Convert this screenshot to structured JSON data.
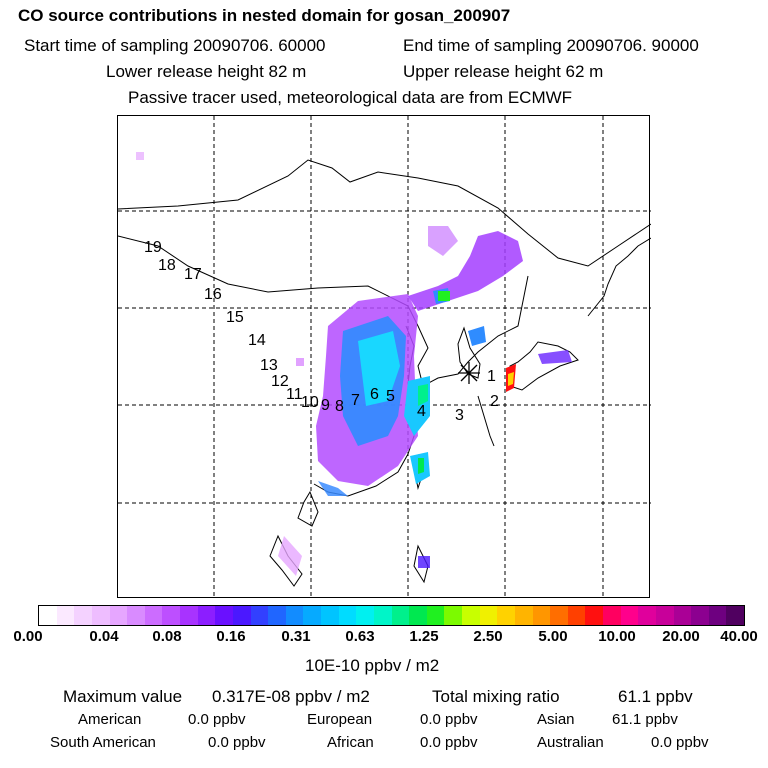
{
  "header": {
    "title": "CO  source contributions in nested domain for gosan_200907",
    "start_label": "Start time of sampling 20090706. 60000",
    "end_label": "End time of sampling 20090706. 90000",
    "lower_label": "Lower release height   82 m",
    "upper_label": "Upper release height   62 m",
    "note": "Passive tracer used, meteorological data are from ECMWF"
  },
  "map": {
    "receptor_marker": "asterisk-icon",
    "trajectory_labels": [
      "1",
      "2",
      "3",
      "4",
      "5",
      "6",
      "7",
      "8",
      "9",
      "10",
      "11",
      "12",
      "13",
      "14",
      "15",
      "16",
      "17",
      "18",
      "19"
    ],
    "colors": {
      "coast": "#000000",
      "grid": "#000000",
      "plume_low": "#e9b6ff",
      "plume_mid": "#a12bff",
      "plume_high": "#19c8ff",
      "plume_peak": "#00ff64"
    }
  },
  "colorbar": {
    "tick_labels": [
      "0.00",
      "0.04",
      "0.08",
      "0.16",
      "0.31",
      "0.63",
      "1.25",
      "2.50",
      "5.00",
      "10.00",
      "20.00",
      "40.00"
    ],
    "unit": "10E-10 ppbv / m2",
    "colors": [
      "#ffffff",
      "#fbe9ff",
      "#f4d2ff",
      "#eebdff",
      "#e6a6ff",
      "#d98bff",
      "#cc6cff",
      "#bd4fff",
      "#a833ff",
      "#8c1eff",
      "#6a10ff",
      "#4b18ff",
      "#3240ff",
      "#2066ff",
      "#128cff",
      "#06aaff",
      "#00c4ff",
      "#00dcff",
      "#00f0f0",
      "#00f5c8",
      "#00f08c",
      "#00e850",
      "#20f020",
      "#7cfa00",
      "#c8ff00",
      "#f0f000",
      "#ffd200",
      "#ffb400",
      "#ff9600",
      "#ff6e00",
      "#ff4000",
      "#ff1010",
      "#ff0060",
      "#ff008c",
      "#e0009c",
      "#c8009a",
      "#aa0096",
      "#8c0090",
      "#6e0080",
      "#500060"
    ]
  },
  "summary": {
    "max_label": "Maximum value",
    "max_value": "0.317E-08 ppbv / m2",
    "total_label": "Total mixing ratio",
    "total_value": "61.1 ppbv",
    "regions": [
      {
        "name": "American",
        "value": "0.0 ppbv"
      },
      {
        "name": "European",
        "value": "0.0 ppbv"
      },
      {
        "name": "Asian",
        "value": "61.1 ppbv"
      },
      {
        "name": "South American",
        "value": "0.0 ppbv"
      },
      {
        "name": "African",
        "value": "0.0 ppbv"
      },
      {
        "name": "Australian",
        "value": "0.0 ppbv"
      }
    ]
  }
}
